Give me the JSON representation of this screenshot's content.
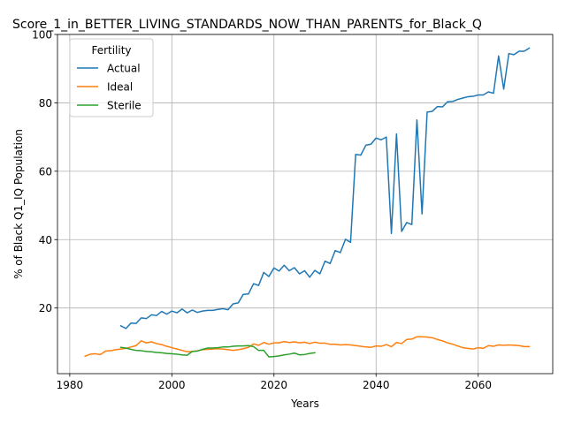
{
  "chart_data": {
    "type": "line",
    "title": "Score_1_in_BETTER_LIVING_STANDARDS_NOW_THAN_PARENTS_for_Black_Q",
    "xlabel": "Years",
    "ylabel": "% of Black Q1_IQ Population",
    "xlim": [
      1977.6,
      2074.6
    ],
    "ylim": [
      0.8,
      100
    ],
    "xticks": [
      1980,
      2000,
      2020,
      2040,
      2060
    ],
    "yticks": [
      20,
      40,
      60,
      80,
      100
    ],
    "grid": true,
    "legend": {
      "title": "Fertility",
      "placement": "top-left"
    },
    "series": [
      {
        "name": "Actual",
        "color": "#1f77b4",
        "x": [
          1990,
          1991,
          1992,
          1993,
          1994,
          1995,
          1996,
          1997,
          1998,
          1999,
          2000,
          2001,
          2002,
          2003,
          2004,
          2005,
          2006,
          2007,
          2008,
          2009,
          2010,
          2011,
          2012,
          2013,
          2014,
          2015,
          2016,
          2017,
          2018,
          2019,
          2020,
          2021,
          2022,
          2023,
          2024,
          2025,
          2026,
          2027,
          2028,
          2029,
          2030,
          2031,
          2032,
          2033,
          2034,
          2035,
          2036,
          2037,
          2038,
          2039,
          2040,
          2041,
          2042,
          2043,
          2044,
          2045,
          2046,
          2047,
          2048,
          2049,
          2050,
          2051,
          2052,
          2053,
          2054,
          2055,
          2056,
          2057,
          2058,
          2059,
          2060,
          2061,
          2062,
          2063,
          2064,
          2065,
          2066,
          2067,
          2068,
          2069,
          2070
        ],
        "y": [
          14.8,
          14.0,
          15.6,
          15.5,
          17.1,
          16.9,
          18.0,
          17.8,
          19.0,
          18.2,
          19.1,
          18.6,
          19.7,
          18.6,
          19.4,
          18.7,
          19.1,
          19.3,
          19.3,
          19.6,
          19.8,
          19.5,
          21.2,
          21.5,
          24.0,
          24.1,
          27.1,
          26.6,
          30.4,
          29.2,
          31.7,
          30.8,
          32.5,
          30.9,
          31.8,
          30.0,
          30.9,
          29.0,
          31.0,
          30.0,
          33.7,
          33.0,
          36.8,
          36.2,
          40.1,
          39.2,
          64.9,
          64.7,
          67.6,
          67.9,
          69.7,
          69.2,
          70.0,
          41.8,
          70.9,
          42.4,
          45.0,
          44.4,
          75.0,
          47.5,
          77.3,
          77.5,
          78.9,
          78.8,
          80.3,
          80.4,
          81.0,
          81.4,
          81.8,
          81.9,
          82.3,
          82.3,
          83.2,
          82.8,
          93.7,
          84.0,
          94.4,
          94.1,
          95.1,
          95.1,
          96.0
        ]
      },
      {
        "name": "Ideal",
        "color": "#ff7f0e",
        "x": [
          1983,
          1984,
          1985,
          1986,
          1987,
          1988,
          1989,
          1990,
          1991,
          1992,
          1993,
          1994,
          1995,
          1996,
          1997,
          1998,
          1999,
          2000,
          2001,
          2002,
          2003,
          2004,
          2005,
          2006,
          2007,
          2008,
          2009,
          2010,
          2011,
          2012,
          2013,
          2014,
          2015,
          2016,
          2017,
          2018,
          2019,
          2020,
          2021,
          2022,
          2023,
          2024,
          2025,
          2026,
          2027,
          2028,
          2029,
          2030,
          2031,
          2032,
          2033,
          2034,
          2035,
          2036,
          2037,
          2038,
          2039,
          2040,
          2041,
          2042,
          2043,
          2044,
          2045,
          2046,
          2047,
          2048,
          2049,
          2050,
          2051,
          2052,
          2053,
          2054,
          2055,
          2056,
          2057,
          2058,
          2059,
          2060,
          2061,
          2062,
          2063,
          2064,
          2065,
          2066,
          2067,
          2068,
          2069,
          2070
        ],
        "y": [
          5.9,
          6.5,
          6.6,
          6.4,
          7.4,
          7.5,
          7.8,
          8.0,
          8.2,
          8.6,
          9.0,
          10.4,
          9.8,
          10.1,
          9.6,
          9.3,
          8.8,
          8.4,
          8.0,
          7.6,
          7.2,
          7.3,
          7.5,
          7.8,
          7.9,
          8.0,
          8.1,
          8.0,
          7.8,
          7.6,
          7.8,
          8.1,
          8.5,
          9.5,
          9.1,
          9.9,
          9.4,
          9.8,
          9.8,
          10.2,
          9.9,
          10.1,
          9.8,
          10.0,
          9.6,
          10.0,
          9.7,
          9.7,
          9.4,
          9.4,
          9.2,
          9.3,
          9.2,
          9.0,
          8.8,
          8.6,
          8.5,
          8.9,
          8.8,
          9.3,
          8.7,
          9.9,
          9.6,
          10.8,
          10.9,
          11.6,
          11.6,
          11.5,
          11.3,
          10.8,
          10.4,
          9.8,
          9.4,
          8.9,
          8.4,
          8.2,
          8.0,
          8.4,
          8.2,
          9.0,
          8.8,
          9.2,
          9.1,
          9.2,
          9.1,
          9.0,
          8.7,
          8.7
        ]
      },
      {
        "name": "Sterile",
        "color": "#2ca02c",
        "x": [
          1990,
          1991,
          1992,
          1993,
          1994,
          1995,
          1996,
          1997,
          1998,
          1999,
          2000,
          2001,
          2002,
          2003,
          2004,
          2005,
          2006,
          2007,
          2008,
          2009,
          2010,
          2011,
          2012,
          2013,
          2014,
          2015,
          2016,
          2017,
          2018,
          2019,
          2020,
          2021,
          2022,
          2023,
          2024,
          2025,
          2026,
          2027,
          2028
        ],
        "y": [
          8.5,
          8.3,
          7.9,
          7.6,
          7.5,
          7.3,
          7.2,
          7.0,
          6.9,
          6.7,
          6.6,
          6.5,
          6.3,
          6.2,
          7.3,
          7.4,
          7.9,
          8.3,
          8.3,
          8.4,
          8.6,
          8.6,
          8.8,
          8.9,
          8.9,
          9.0,
          8.7,
          7.6,
          7.6,
          5.7,
          5.8,
          6.0,
          6.3,
          6.5,
          6.8,
          6.3,
          6.4,
          6.7,
          6.9
        ]
      }
    ]
  }
}
